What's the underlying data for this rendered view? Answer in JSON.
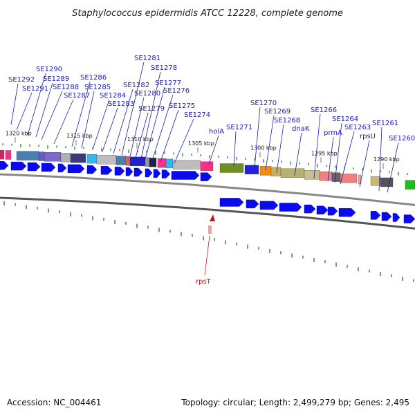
{
  "title": "Staphylococcus epidermidis ATCC 12228, complete genome",
  "footer": {
    "accession": "Accession: NC_004461",
    "summary": "Topology: circular; Length: 2,499,279 bp; Genes: 2,495"
  },
  "colors": {
    "gene_label": "#1a1ab8",
    "rna_label": "#cc1111",
    "cds_arrow": "#0a0aee",
    "backbone": "#888888",
    "tick": "#1f8a1f"
  },
  "map": {
    "kbp_labels": [
      "1320 kbp",
      "1315 kbp",
      "1310 kbp",
      "1305 kbp",
      "1300 kbp",
      "1295 kbp",
      "1290 kbp"
    ],
    "gene_labels": [
      "SE1292",
      "SE1291",
      "SE1290",
      "SE1289",
      "SE1288",
      "SE1287",
      "SE1286",
      "SE1285",
      "SE1284",
      "SE1283",
      "SE1282",
      "SE1281",
      "SE1280",
      "SE1279",
      "SE1278",
      "SE1277",
      "SE1276",
      "SE1275",
      "SE1274",
      "holA",
      "SE1271",
      "SE1270",
      "SE1269",
      "SE1268",
      "dnaK",
      "SE1266",
      "prmA",
      "SE1264",
      "SE1263",
      "rpsU",
      "SE1261",
      "SE1260"
    ],
    "rna_label": "rpsT"
  }
}
